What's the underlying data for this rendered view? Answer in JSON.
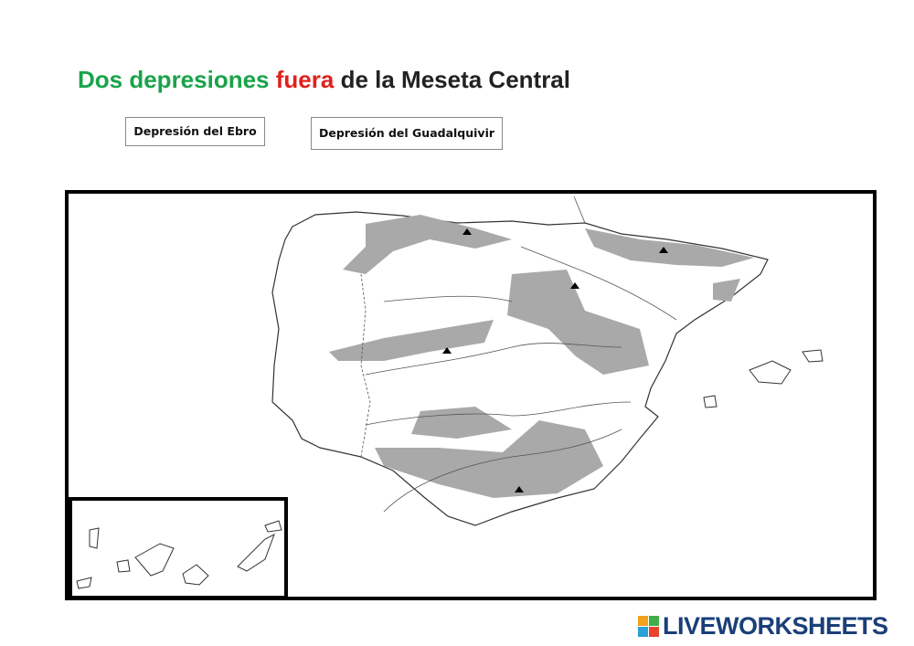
{
  "header": {
    "title": {
      "part1": "Dos depresiones",
      "part2": "fuera",
      "part3": "de la Meseta Central"
    }
  },
  "labels": [
    "Depresión del Ebro",
    "Depresión del Guadalquivir"
  ],
  "footer": {
    "logo": "LIVEWORKSHEETS"
  }
}
